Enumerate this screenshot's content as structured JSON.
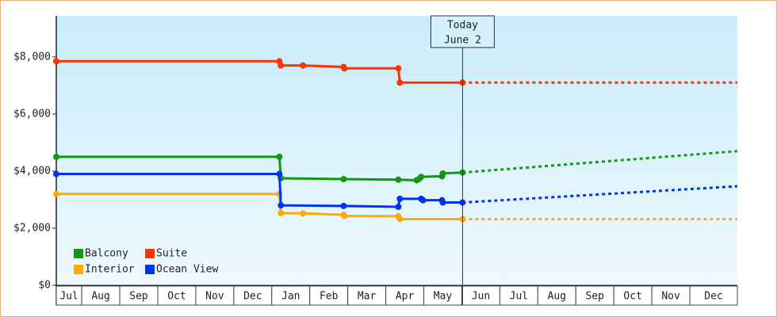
{
  "chart_data": {
    "type": "line",
    "xlim": [
      0.33,
      18.25
    ],
    "ylim": [
      0,
      9440
    ],
    "xticks": [
      {
        "value": 0.33,
        "label": "Jul"
      },
      {
        "value": 1,
        "label": "Aug"
      },
      {
        "value": 2,
        "label": "Sep"
      },
      {
        "value": 3,
        "label": "Oct"
      },
      {
        "value": 4,
        "label": "Nov"
      },
      {
        "value": 5,
        "label": "Dec"
      },
      {
        "value": 6,
        "label": "Jan"
      },
      {
        "value": 7,
        "label": "Feb"
      },
      {
        "value": 8,
        "label": "Mar"
      },
      {
        "value": 9,
        "label": "Apr"
      },
      {
        "value": 10,
        "label": "May"
      },
      {
        "value": 11,
        "label": "Jun"
      },
      {
        "value": 12,
        "label": "Jul"
      },
      {
        "value": 13,
        "label": "Aug"
      },
      {
        "value": 14,
        "label": "Sep"
      },
      {
        "value": 15,
        "label": "Oct"
      },
      {
        "value": 16,
        "label": "Nov"
      },
      {
        "value": 17,
        "label": "Dec"
      }
    ],
    "yticks": [
      {
        "value": 0,
        "label": "$0"
      },
      {
        "value": 2000,
        "label": "$2,000"
      },
      {
        "value": 4000,
        "label": "$4,000"
      },
      {
        "value": 6000,
        "label": "$6,000"
      },
      {
        "value": 8000,
        "label": "$8,000"
      }
    ],
    "grid": false,
    "legend": "lower left",
    "annotation": {
      "x": 11.02,
      "lines": [
        "Today",
        "June 2"
      ]
    },
    "series": [
      {
        "name": "Balcony",
        "color": "#119911",
        "x": [
          0.33,
          6.2,
          6.24,
          7.89,
          9.33,
          9.81,
          9.87,
          9.93,
          10.48,
          10.5,
          11.02
        ],
        "values": [
          4500,
          4500,
          3750,
          3720,
          3700,
          3680,
          3720,
          3800,
          3820,
          3920,
          3950
        ],
        "forecast": {
          "x": [
            11.02,
            18.25
          ],
          "values": [
            3950,
            4700
          ]
        }
      },
      {
        "name": "Suite",
        "color": "#ff3300",
        "x": [
          0.33,
          6.2,
          6.24,
          6.82,
          7.89,
          7.91,
          9.33,
          9.37,
          11.02
        ],
        "values": [
          7850,
          7850,
          7700,
          7700,
          7650,
          7600,
          7600,
          7100,
          7100
        ],
        "forecast": {
          "x": [
            11.02,
            18.25
          ],
          "values": [
            7100,
            7100
          ]
        }
      },
      {
        "name": "Interior",
        "color": "#ffaa00",
        "x": [
          0.33,
          6.2,
          6.24,
          6.82,
          7.89,
          7.91,
          9.33,
          9.37,
          11.02
        ],
        "values": [
          3200,
          3200,
          2530,
          2520,
          2470,
          2430,
          2420,
          2320,
          2320
        ],
        "forecast": {
          "x": [
            11.02,
            18.25
          ],
          "values": [
            2320,
            2320
          ]
        }
      },
      {
        "name": "Ocean View",
        "color": "#0033ee",
        "x": [
          0.33,
          6.2,
          6.24,
          7.89,
          9.33,
          9.37,
          9.93,
          9.98,
          10.48,
          10.5,
          11.02
        ],
        "values": [
          3900,
          3900,
          2800,
          2780,
          2750,
          3030,
          3030,
          2980,
          2980,
          2900,
          2900
        ],
        "forecast": {
          "x": [
            11.02,
            18.25
          ],
          "values": [
            2900,
            3470
          ]
        }
      }
    ]
  }
}
